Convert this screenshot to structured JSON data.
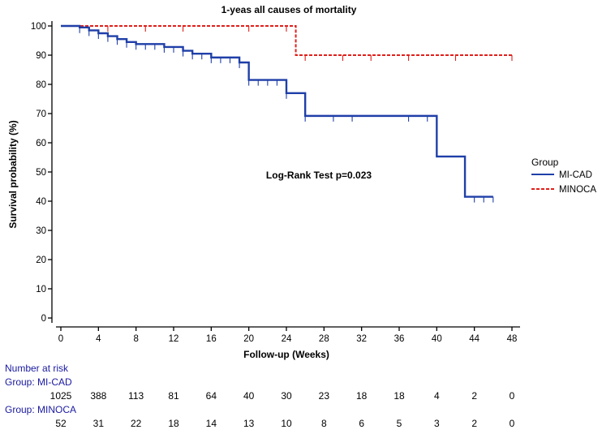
{
  "chart_data": {
    "type": "line",
    "title": "1-yeas all causes of mortality",
    "xlabel": "Follow-up (Weeks)",
    "ylabel": "Survival probability (%)",
    "xlim": [
      0,
      48
    ],
    "ylim": [
      0,
      100
    ],
    "xticks": [
      0,
      4,
      8,
      12,
      16,
      20,
      24,
      28,
      32,
      36,
      40,
      44,
      48
    ],
    "yticks": [
      0,
      10,
      20,
      30,
      40,
      50,
      60,
      70,
      80,
      90,
      100
    ],
    "annotation": "Log-Rank Test p=0.023",
    "legend": {
      "title": "Group",
      "position": "right"
    },
    "series": [
      {
        "name": "MI-CAD",
        "color": "#1f3fa8",
        "style": "solid",
        "steps": [
          [
            0,
            100
          ],
          [
            2,
            99.5
          ],
          [
            3,
            98.5
          ],
          [
            4,
            97.5
          ],
          [
            5,
            96.5
          ],
          [
            6,
            95.5
          ],
          [
            7,
            94.5
          ],
          [
            8,
            93.8
          ],
          [
            11,
            92.8
          ],
          [
            13,
            91.5
          ],
          [
            14,
            90.5
          ],
          [
            16,
            89.2
          ],
          [
            19,
            87.5
          ],
          [
            20,
            81.5
          ],
          [
            24,
            77
          ],
          [
            26,
            69.2
          ],
          [
            40,
            55.3
          ],
          [
            43,
            41.5
          ],
          [
            46,
            41.5
          ]
        ],
        "censored": [
          [
            2,
            99.5
          ],
          [
            3,
            98.5
          ],
          [
            4,
            97.5
          ],
          [
            5,
            96.5
          ],
          [
            6,
            95.5
          ],
          [
            7,
            94.5
          ],
          [
            8,
            93.8
          ],
          [
            9,
            93.8
          ],
          [
            10,
            93.8
          ],
          [
            11,
            92.8
          ],
          [
            12,
            92.8
          ],
          [
            13,
            91.5
          ],
          [
            14,
            90.5
          ],
          [
            15,
            90.5
          ],
          [
            16,
            89.2
          ],
          [
            17,
            89.2
          ],
          [
            18,
            89.2
          ],
          [
            19,
            87.5
          ],
          [
            20,
            81.5
          ],
          [
            21,
            81.5
          ],
          [
            22,
            81.5
          ],
          [
            23,
            81.5
          ],
          [
            24,
            77
          ],
          [
            26,
            69.2
          ],
          [
            29,
            69.2
          ],
          [
            31,
            69.2
          ],
          [
            37,
            69.2
          ],
          [
            39,
            69.2
          ],
          [
            44,
            41.5
          ],
          [
            45,
            41.5
          ],
          [
            46,
            41.5
          ]
        ]
      },
      {
        "name": "MINOCA",
        "color": "#e0201b",
        "style": "dashed",
        "steps": [
          [
            0,
            100
          ],
          [
            25,
            90
          ],
          [
            48,
            90
          ]
        ],
        "censored": [
          [
            5,
            100
          ],
          [
            9,
            100
          ],
          [
            13,
            100
          ],
          [
            20,
            100
          ],
          [
            24,
            100
          ],
          [
            26,
            90
          ],
          [
            30,
            90
          ],
          [
            33,
            90
          ],
          [
            37,
            90
          ],
          [
            42,
            90
          ],
          [
            48,
            90
          ]
        ]
      }
    ],
    "number_at_risk": {
      "heading": "Number at risk",
      "times": [
        0,
        4,
        8,
        12,
        16,
        20,
        24,
        28,
        32,
        36,
        40,
        44,
        48
      ],
      "groups": [
        {
          "label": "Group: MI-CAD",
          "values": [
            1025,
            388,
            113,
            81,
            64,
            40,
            30,
            23,
            18,
            18,
            4,
            2,
            0
          ]
        },
        {
          "label": "Group: MINOCA",
          "values": [
            52,
            31,
            22,
            18,
            14,
            13,
            10,
            8,
            6,
            5,
            3,
            2,
            0
          ]
        }
      ]
    }
  }
}
